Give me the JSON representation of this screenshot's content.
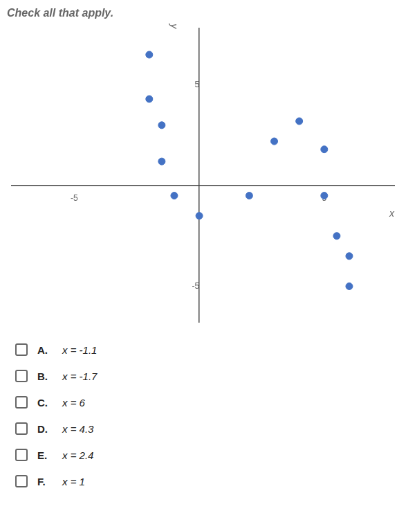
{
  "chart_data": {
    "type": "scatter",
    "title": "Check all that apply.",
    "x": [
      -2,
      -2,
      -1.5,
      -1.5,
      -1,
      0,
      2,
      3,
      4,
      5,
      5,
      5.5,
      6,
      6
    ],
    "values": [
      6.5,
      4.3,
      3.0,
      1.2,
      -0.5,
      -1.5,
      -0.5,
      2.2,
      3.2,
      1.8,
      -0.5,
      -2.5,
      -3.5,
      -5.0
    ],
    "color": "#4472C4",
    "x_label": "x",
    "y_label": "y",
    "xlim": [
      -7.5,
      7.8
    ],
    "ylim": [
      -6.8,
      7.8
    ],
    "xticks": [
      -5,
      5
    ],
    "yticks": [
      -5,
      5
    ],
    "grid": false,
    "annotations": [
      {
        "label": "A.",
        "text": "x = -1.1"
      },
      {
        "label": "B.",
        "text": "x = -1.7"
      },
      {
        "label": "C.",
        "text": "x = 6"
      },
      {
        "label": "D.",
        "text": "x = 4.3"
      },
      {
        "label": "E.",
        "text": "x = 2.4"
      },
      {
        "label": "F.",
        "text": "x = 1"
      }
    ]
  }
}
